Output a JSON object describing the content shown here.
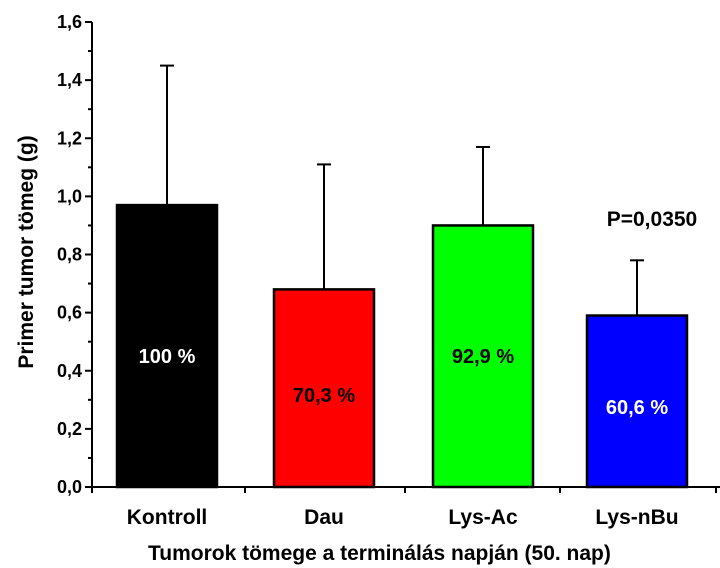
{
  "chart_data": {
    "type": "bar",
    "title": "",
    "xlabel": "Tumorok tömege a terminálás napján (50. nap)",
    "ylabel": "Primer tumor tömeg (g)",
    "ylim": [
      0,
      1.6
    ],
    "yticks": [
      "0,0",
      "0,2",
      "0,4",
      "0,6",
      "0,8",
      "1,0",
      "1,2",
      "1,4",
      "1,6"
    ],
    "grid": false,
    "legend": "none",
    "categories": [
      "Kontroll",
      "Dau",
      "Lys-Ac",
      "Lys-nBu"
    ],
    "values": [
      0.97,
      0.68,
      0.9,
      0.59
    ],
    "error_upper": [
      1.45,
      1.11,
      1.17,
      0.78
    ],
    "bar_labels": [
      "100 %",
      "70,3 %",
      "92,9 %",
      "60,6 %"
    ],
    "bar_colors": [
      "#000000",
      "#ff0000",
      "#00ff00",
      "#0000ff"
    ],
    "bar_label_colors": [
      "#ffffff",
      "#000000",
      "#000000",
      "#ffffff"
    ],
    "annotation": "P=0,0350"
  }
}
